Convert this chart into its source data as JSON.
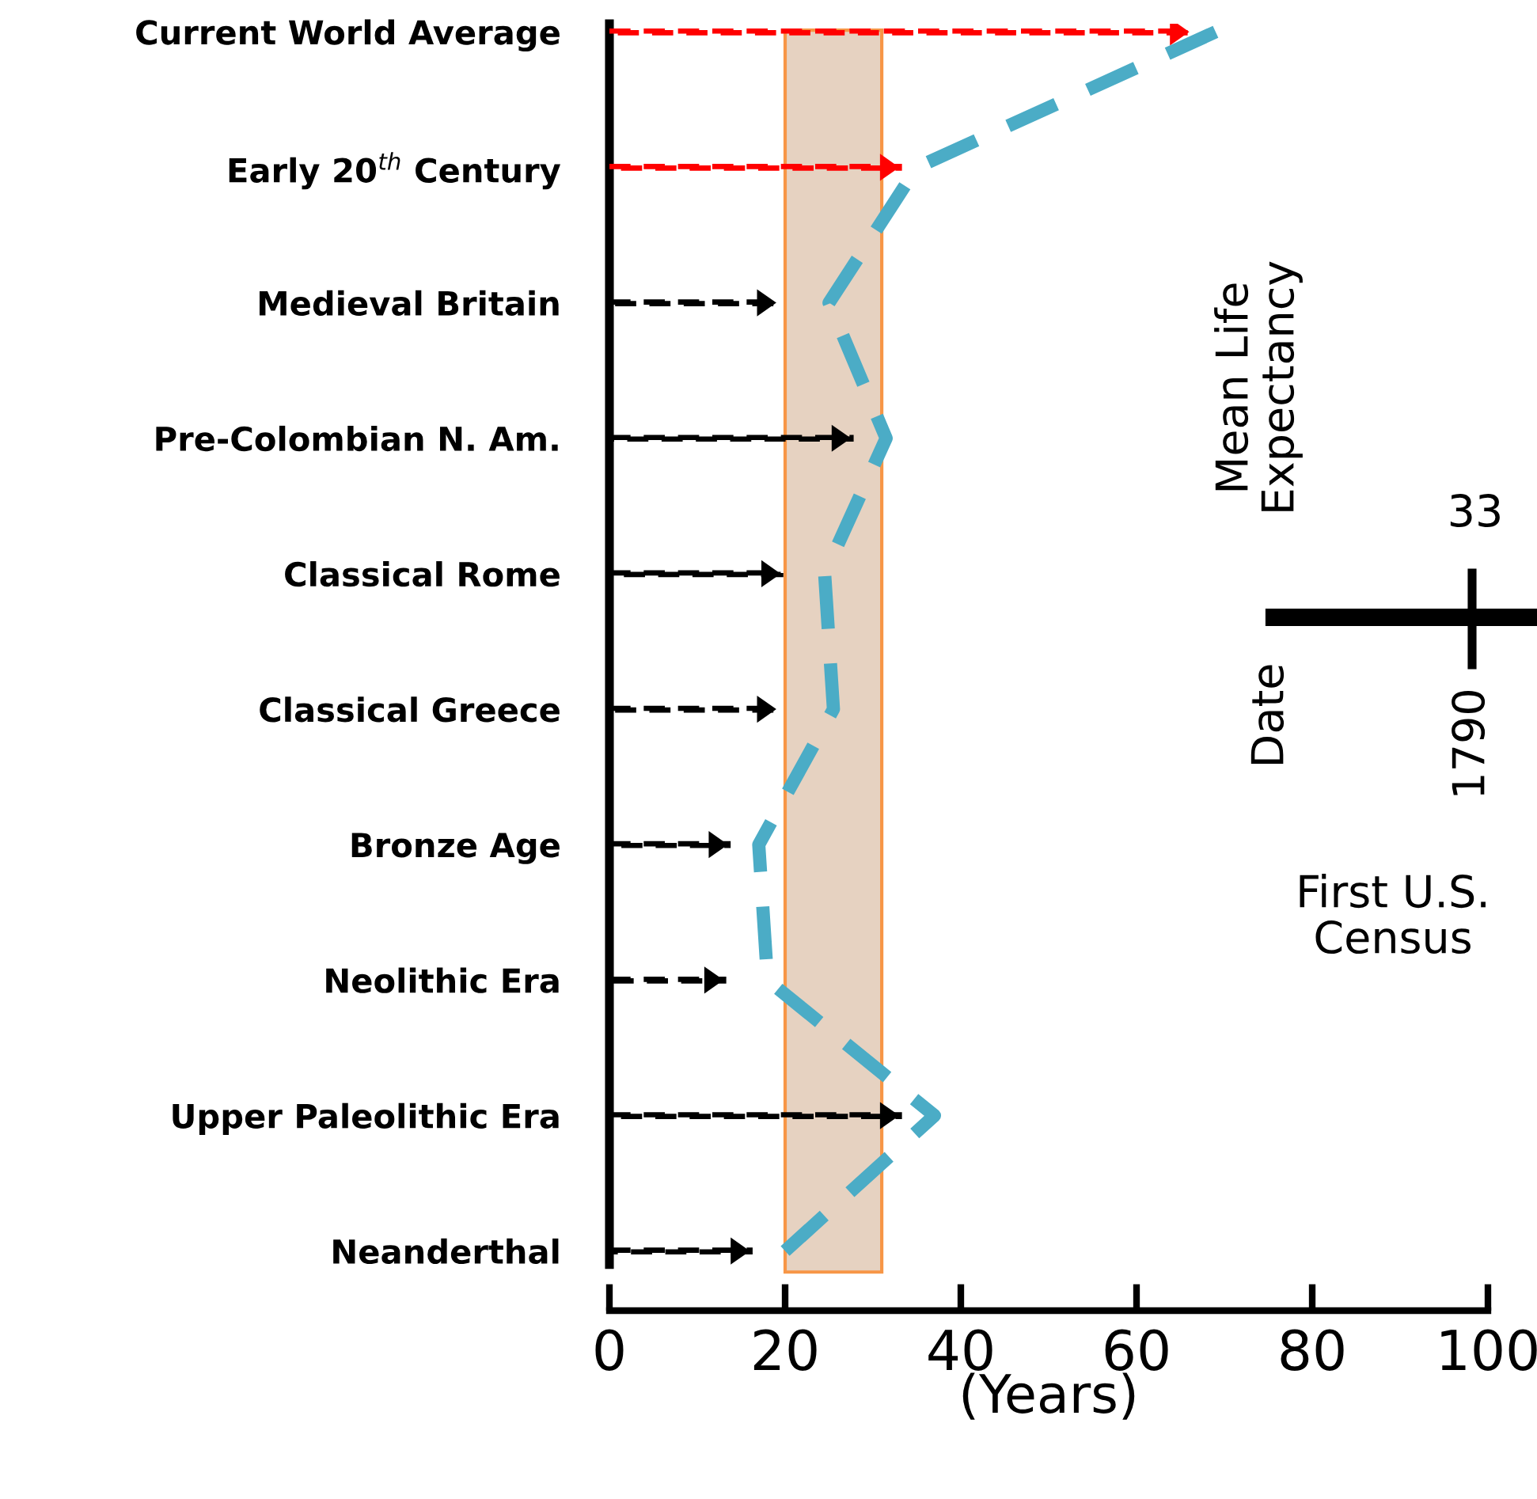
{
  "chart_data": {
    "type": "bar",
    "orientation": "horizontal",
    "xlabel": "(Years)",
    "categories": [
      "Current World Average",
      "Early 20$^{th}$ Century",
      "Medieval Britain",
      "Pre-Colombian N. Am.",
      "Classical Rome",
      "Classical Greece",
      "Bronze Age",
      "Neolithic Era",
      "Upper Paleolithic Era",
      "Neanderthal"
    ],
    "series": [
      {
        "colors": [
          "#ff0000",
          "#ff0000",
          "#000000",
          "#000000",
          "#000000",
          "#000000",
          "#000000",
          "#000000",
          "#000000",
          "#000000"
        ],
        "values": [
          66,
          33,
          19,
          27.5,
          19.5,
          19,
          13.5,
          13,
          33,
          16
        ],
        "line_style": "dashed"
      },
      {
        "type": "line",
        "color": "#4bacc6",
        "values": [
          69,
          35,
          25,
          31.5,
          24.5,
          25.5,
          17,
          18,
          37,
          20
        ],
        "line_style": "dashed",
        "marker": "none"
      }
    ],
    "bands": [
      {
        "axis": "x",
        "from": 20,
        "to": 31,
        "color": "#e6d2c1"
      }
    ],
    "xlim": [
      0,
      100
    ],
    "xticks": [
      0,
      20,
      40,
      60,
      80,
      100
    ],
    "grid": false,
    "legend": false,
    "annotations": [
      "Mean Life Expectancy",
      "33",
      "Date",
      "1790",
      "First U.S. Census"
    ]
  }
}
